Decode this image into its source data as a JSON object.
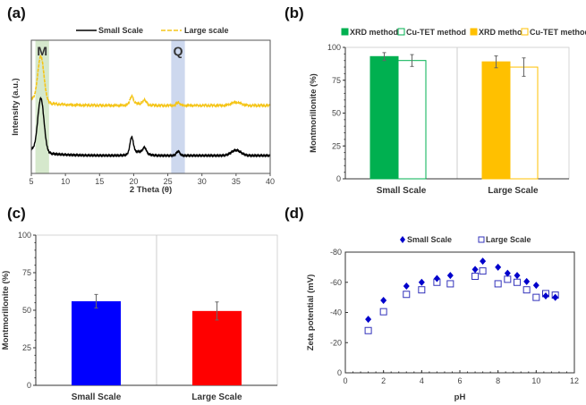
{
  "chart_data": [
    {
      "panel": "(a)",
      "type": "line",
      "xlabel": "2 Theta (θ)",
      "ylabel": "Intensity (a.u.)",
      "xlim": [
        5,
        40
      ],
      "xticks": [
        5,
        10,
        15,
        20,
        25,
        30,
        35,
        40
      ],
      "legend_position": "top",
      "annotations": [
        {
          "label": "M",
          "range": [
            5.6,
            7.6
          ],
          "color": "#d5e8cc"
        },
        {
          "label": "Q",
          "range": [
            25.5,
            27.5
          ],
          "color": "#cdd8ee"
        }
      ],
      "peaks_2theta": [
        6.4,
        19.7,
        21.6,
        26.5,
        35.0
      ],
      "series": [
        {
          "name": "Small Scale",
          "color": "#000000",
          "style": "solid",
          "offset": 0,
          "peak_heights": [
            1.0,
            0.3,
            0.1,
            0.08,
            0.1
          ],
          "baseline": 0.12
        },
        {
          "name": "Large scale",
          "color": "#f5c518",
          "style": "dashed",
          "offset": 1,
          "peak_heights": [
            0.85,
            0.15,
            0.08,
            0.06,
            0.06
          ],
          "baseline": 0.12
        }
      ]
    },
    {
      "panel": "(b)",
      "type": "bar",
      "ylabel": "Montmorillonite (%)",
      "ylim": [
        0,
        100
      ],
      "yticks": [
        0,
        25,
        50,
        75,
        100
      ],
      "categories": [
        "Small Scale",
        "Large Scale"
      ],
      "legend_position": "top",
      "legend": [
        {
          "name": "XRD method",
          "color": "#00b050",
          "filled": true
        },
        {
          "name": "Cu-TET method",
          "color": "#00b050",
          "filled": false
        },
        {
          "name": "XRD method",
          "color": "#ffc000",
          "filled": true
        },
        {
          "name": "Cu-TET method",
          "color": "#ffc000",
          "filled": false
        }
      ],
      "bars": [
        {
          "category": "Small Scale",
          "method": "XRD method",
          "value": 93,
          "error": 3,
          "color": "#00b050",
          "filled": true
        },
        {
          "category": "Small Scale",
          "method": "Cu-TET method",
          "value": 90,
          "error": 4.5,
          "color": "#00b050",
          "filled": false
        },
        {
          "category": "Large Scale",
          "method": "XRD method",
          "value": 89,
          "error": 4.5,
          "color": "#ffc000",
          "filled": true
        },
        {
          "category": "Large Scale",
          "method": "Cu-TET method",
          "value": 85,
          "error": 7,
          "color": "#ffc000",
          "filled": false
        }
      ]
    },
    {
      "panel": "(c)",
      "type": "bar",
      "ylabel": "Montmorillonite (%)",
      "ylim": [
        0,
        100
      ],
      "yticks": [
        0,
        25,
        50,
        75,
        100
      ],
      "categories": [
        "Small Scale",
        "Large Scale"
      ],
      "values": [
        56,
        49.5
      ],
      "errors": [
        4.5,
        6
      ],
      "colors": [
        "#0000ff",
        "#ff0000"
      ]
    },
    {
      "panel": "(d)",
      "type": "scatter",
      "xlabel": "pH",
      "ylabel": "Zeta potential (mV)",
      "xlim": [
        0,
        12
      ],
      "ylim": [
        0,
        -80
      ],
      "xticks": [
        0,
        2,
        4,
        6,
        8,
        10,
        12
      ],
      "yticks": [
        0,
        -20,
        -40,
        -60,
        -80
      ],
      "legend_position": "top",
      "x": [
        1.2,
        2,
        3.2,
        4,
        4.8,
        5.5,
        6.8,
        7.2,
        8,
        8.5,
        9,
        9.5,
        10,
        10.5,
        11
      ],
      "series": [
        {
          "name": "Small Scale",
          "marker": "filled-diamond",
          "color": "#0000cc",
          "values": [
            -35.5,
            -48,
            -57.5,
            -60,
            -62.5,
            -64.5,
            -68.5,
            -74,
            -70,
            -66,
            -64.5,
            -60.5,
            -58,
            -51,
            -50
          ]
        },
        {
          "name": "Large Scale",
          "marker": "open-square",
          "color": "#3333bb",
          "values": [
            -28,
            -40.5,
            -52,
            -55,
            -60,
            -59,
            -64,
            -67.5,
            -59,
            -62,
            -60,
            -55,
            -50,
            -52.5,
            -51.5
          ]
        }
      ]
    }
  ]
}
